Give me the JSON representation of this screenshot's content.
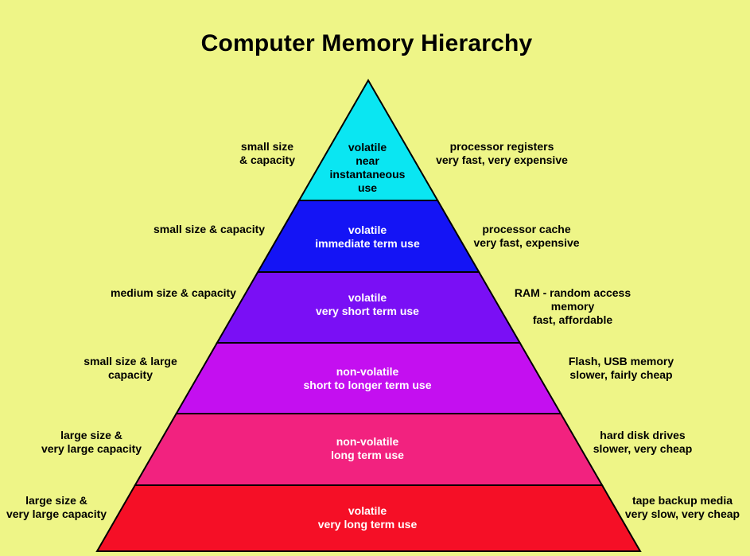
{
  "title": "Computer Memory Hierarchy",
  "colors": {
    "background": "#eef587",
    "outline": "#000000",
    "tiers": [
      "#0ae6f2",
      "#1414f5",
      "#7a0ff5",
      "#c40ff0",
      "#f2227f",
      "#f50f26"
    ]
  },
  "tiers": [
    {
      "center": [
        "volatile",
        "near",
        "instantaneous",
        "use"
      ],
      "left": [
        "small size",
        "& capacity"
      ],
      "right": [
        "processor registers",
        "very fast, very expensive"
      ]
    },
    {
      "center": [
        "volatile",
        "immediate term use"
      ],
      "left": [
        "small size & capacity"
      ],
      "right": [
        "processor cache",
        "very fast, expensive"
      ]
    },
    {
      "center": [
        "volatile",
        "very short term use"
      ],
      "left": [
        "medium size & capacity"
      ],
      "right": [
        "RAM - random access",
        "memory",
        "fast, affordable"
      ]
    },
    {
      "center": [
        "non-volatile",
        "short to longer term use"
      ],
      "left": [
        "small size & large",
        "capacity"
      ],
      "right": [
        "Flash, USB memory",
        "slower, fairly cheap"
      ]
    },
    {
      "center": [
        "non-volatile",
        "long term use"
      ],
      "left": [
        "large size &",
        "very large capacity"
      ],
      "right": [
        "hard disk drives",
        "slower, very cheap"
      ]
    },
    {
      "center": [
        "volatile",
        "very long term use"
      ],
      "left": [
        "large size &",
        "very large capacity"
      ],
      "right": [
        "tape backup media",
        "very slow, very cheap"
      ]
    }
  ]
}
